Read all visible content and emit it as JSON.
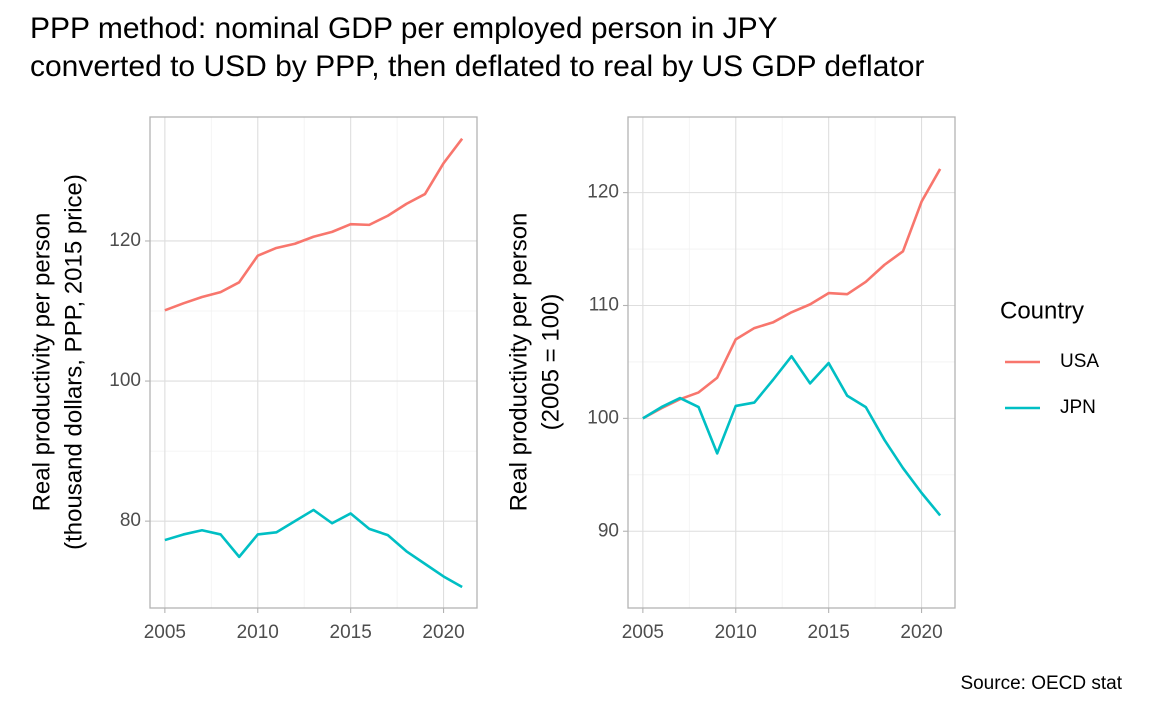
{
  "title": [
    "PPP method: nominal GDP per employed person in JPY",
    "converted to USD by PPP, then deflated to real by US GDP deflator"
  ],
  "legend_title": "Country",
  "caption": "Source: OECD stat",
  "chart_data": [
    {
      "type": "line",
      "ylabel": [
        "Real productivity per person",
        "(thousand dollars, PPP, 2015 price)"
      ],
      "x": [
        2005,
        2006,
        2007,
        2008,
        2009,
        2010,
        2011,
        2012,
        2013,
        2014,
        2015,
        2016,
        2017,
        2018,
        2019,
        2020,
        2021
      ],
      "series": [
        {
          "name": "USA",
          "color": "#F8766D",
          "values": [
            110.1,
            111.1,
            112.0,
            112.7,
            114.1,
            117.9,
            119.0,
            119.6,
            120.6,
            121.3,
            122.4,
            122.3,
            123.6,
            125.3,
            126.7,
            131.1,
            134.6
          ]
        },
        {
          "name": "JPN",
          "color": "#00BFC4",
          "values": [
            77.3,
            78.1,
            78.7,
            78.1,
            74.9,
            78.1,
            78.4,
            80.0,
            81.6,
            79.7,
            81.1,
            78.9,
            78.0,
            75.7,
            73.9,
            72.1,
            70.6
          ]
        }
      ],
      "xlim": [
        2004.2,
        2021.8
      ],
      "xticks": [
        2005,
        2010,
        2015,
        2020
      ],
      "ylim": [
        67.6,
        137.7
      ],
      "yticks": [
        80,
        100,
        120
      ],
      "grid": true
    },
    {
      "type": "line",
      "ylabel": [
        "Real productivity per person",
        "(2005 = 100)"
      ],
      "x": [
        2005,
        2006,
        2007,
        2008,
        2009,
        2010,
        2011,
        2012,
        2013,
        2014,
        2015,
        2016,
        2017,
        2018,
        2019,
        2020,
        2021
      ],
      "series": [
        {
          "name": "USA",
          "color": "#F8766D",
          "values": [
            100,
            100.9,
            101.7,
            102.3,
            103.6,
            107.0,
            108.0,
            108.5,
            109.4,
            110.1,
            111.1,
            111.0,
            112.1,
            113.6,
            114.8,
            119.2,
            122.1
          ]
        },
        {
          "name": "JPN",
          "color": "#00BFC4",
          "values": [
            100,
            101.0,
            101.8,
            101.0,
            96.9,
            101.1,
            101.4,
            103.4,
            105.5,
            103.1,
            104.9,
            102.0,
            101.0,
            98.1,
            95.6,
            93.4,
            91.4
          ]
        }
      ],
      "xlim": [
        2004.2,
        2021.8
      ],
      "xticks": [
        2005,
        2010,
        2015,
        2020
      ],
      "ylim": [
        83.2,
        126.7
      ],
      "yticks": [
        90,
        100,
        110,
        120
      ],
      "grid": true
    }
  ]
}
